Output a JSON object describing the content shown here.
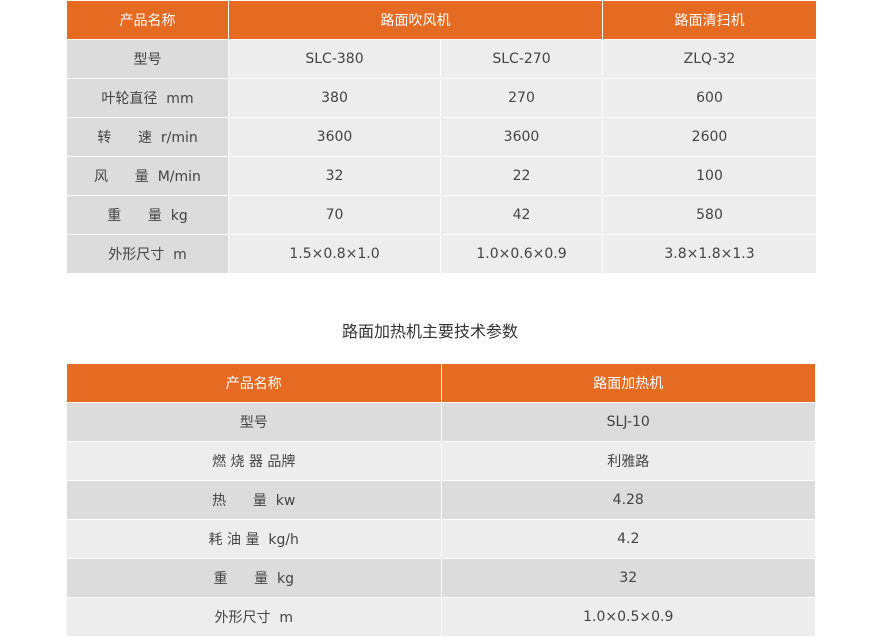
{
  "table1": {
    "headers": [
      "产品名称",
      "路面吹风机",
      "路面清扫机"
    ],
    "rows": [
      [
        "型号",
        "SLC-380",
        "SLC-270",
        "ZLQ-32"
      ],
      [
        "叶轮直径  mm",
        "380",
        "270",
        "600"
      ],
      [
        "转      速  r/min",
        "3600",
        "3600",
        "2600"
      ],
      [
        "风      量  M/min",
        "32",
        "22",
        "100"
      ],
      [
        "重      量  kg",
        "70",
        "42",
        "580"
      ],
      [
        "外形尺寸  m",
        "1.5×0.8×1.0",
        "1.0×0.6×0.9",
        "3.8×1.8×1.3"
      ]
    ]
  },
  "title": "路面加热机主要技术参数",
  "table2": {
    "headers": [
      "产品名称",
      "路面加热机"
    ],
    "rows": [
      [
        "型号",
        "SLJ-10"
      ],
      [
        "燃 烧 器 品牌",
        "利雅路"
      ],
      [
        "热      量  kw",
        "4.28"
      ],
      [
        "耗 油 量  kg/h",
        "4.2"
      ],
      [
        "重      量  kg",
        "32"
      ],
      [
        "外形尺寸  m",
        "1.0×0.5×0.9"
      ]
    ]
  },
  "colors": {
    "header": "#e56a22",
    "label_cell": "#dcdcdc",
    "data_cell": "#ededed"
  }
}
